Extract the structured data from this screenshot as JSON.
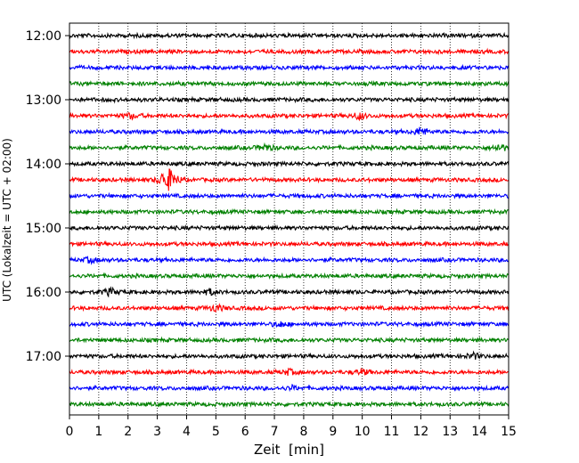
{
  "chart_data": {
    "type": "line",
    "title": "",
    "xlabel": "Zeit  [min]",
    "ylabel": "UTC (Lokalzeit = UTC + 02:00)",
    "xlim": [
      0,
      15
    ],
    "x_ticks": [
      "0",
      "1",
      "2",
      "3",
      "4",
      "5",
      "6",
      "7",
      "8",
      "9",
      "10",
      "11",
      "12",
      "13",
      "14",
      "15"
    ],
    "y_tick_labels": [
      "12:00",
      "13:00",
      "14:00",
      "15:00",
      "16:00",
      "17:00"
    ],
    "grid": "vertical dotted",
    "trace_interval_min": 15,
    "start_time": "12:00",
    "end_time": "17:45",
    "color_cycle": [
      "#000000",
      "#ff0000",
      "#0000ff",
      "#008000"
    ],
    "traces": [
      {
        "time": "12:00",
        "color": "#000000"
      },
      {
        "time": "12:15",
        "color": "#ff0000"
      },
      {
        "time": "12:30",
        "color": "#0000ff"
      },
      {
        "time": "12:45",
        "color": "#008000"
      },
      {
        "time": "13:00",
        "color": "#000000"
      },
      {
        "time": "13:15",
        "color": "#ff0000"
      },
      {
        "time": "13:30",
        "color": "#0000ff"
      },
      {
        "time": "13:45",
        "color": "#008000"
      },
      {
        "time": "14:00",
        "color": "#000000"
      },
      {
        "time": "14:15",
        "color": "#ff0000"
      },
      {
        "time": "14:30",
        "color": "#0000ff"
      },
      {
        "time": "14:45",
        "color": "#008000"
      },
      {
        "time": "15:00",
        "color": "#000000"
      },
      {
        "time": "15:15",
        "color": "#ff0000"
      },
      {
        "time": "15:30",
        "color": "#0000ff"
      },
      {
        "time": "15:45",
        "color": "#008000"
      },
      {
        "time": "16:00",
        "color": "#000000"
      },
      {
        "time": "16:15",
        "color": "#ff0000"
      },
      {
        "time": "16:30",
        "color": "#0000ff"
      },
      {
        "time": "16:45",
        "color": "#008000"
      },
      {
        "time": "17:00",
        "color": "#000000"
      },
      {
        "time": "17:15",
        "color": "#ff0000"
      },
      {
        "time": "17:30",
        "color": "#0000ff"
      },
      {
        "time": "17:45",
        "color": "#008000"
      }
    ]
  }
}
